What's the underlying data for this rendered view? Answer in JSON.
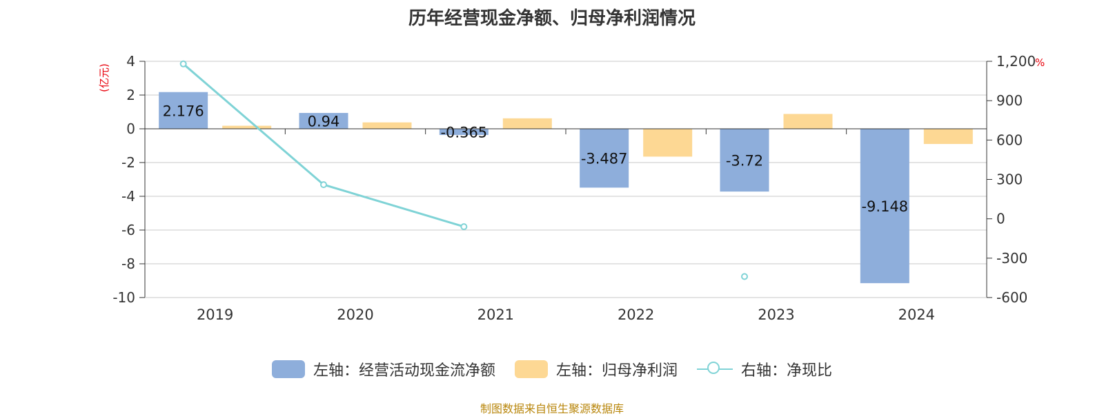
{
  "title": "历年经营现金净额、归母净利润情况",
  "source": "制图数据来自恒生聚源数据库",
  "colors": {
    "cash_flow": "#8eaedb",
    "net_profit": "#fdd894",
    "ratio": "#7fd3d6",
    "unit": "#e8000b",
    "axis": "#333333",
    "grid": "#c8c8c8"
  },
  "legend": [
    {
      "label": "左轴：经营活动现金流净额",
      "kind": "bar",
      "color": "#8eaedb"
    },
    {
      "label": "左轴：归母净利润",
      "kind": "bar",
      "color": "#fdd894"
    },
    {
      "label": "右轴：净现比",
      "kind": "line",
      "color": "#7fd3d6"
    }
  ],
  "chart_data": {
    "type": "bar",
    "categories": [
      "2019",
      "2020",
      "2021",
      "2022",
      "2023",
      "2024"
    ],
    "series": [
      {
        "name": "左轴：经营活动现金流净额",
        "axis": "left",
        "type": "bar",
        "values": [
          2.176,
          0.94,
          -0.365,
          -3.487,
          -3.72,
          -9.148
        ],
        "labels": [
          "2.176",
          "0.94",
          "-0.365",
          "-3.487",
          "-3.72",
          "-9.148"
        ]
      },
      {
        "name": "左轴：归母净利润",
        "axis": "left",
        "type": "bar",
        "values": [
          0.18,
          0.38,
          0.62,
          -1.65,
          0.88,
          -0.9
        ]
      },
      {
        "name": "右轴：净现比",
        "axis": "right",
        "type": "line",
        "values": [
          1180,
          260,
          -60,
          null,
          -440,
          null
        ]
      }
    ],
    "y_left": {
      "unit": "(亿元)",
      "ylim": [
        -10,
        4
      ],
      "ticks": [
        "4",
        "2",
        "0",
        "-2",
        "-4",
        "-6",
        "-8",
        "-10"
      ]
    },
    "y_right": {
      "unit": "%",
      "ylim": [
        -600,
        1200
      ],
      "ticks": [
        "1,200",
        "900",
        "600",
        "300",
        "0",
        "-300",
        "-600"
      ]
    },
    "grid": true,
    "legend_position": "bottom"
  }
}
